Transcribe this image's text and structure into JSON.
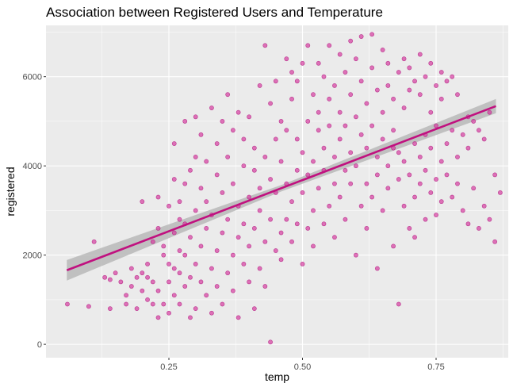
{
  "chart_data": {
    "type": "scatter",
    "title": "Association between Registered Users and Temperature",
    "xlabel": "temp",
    "ylabel": "registered",
    "xlim": [
      0.02,
      0.885
    ],
    "ylim": [
      -300,
      7150
    ],
    "x_ticks": [
      {
        "value": 0.25,
        "label": "0.25"
      },
      {
        "value": 0.5,
        "label": "0.50"
      },
      {
        "value": 0.75,
        "label": "0.75"
      }
    ],
    "y_ticks": [
      {
        "value": 0,
        "label": "0"
      },
      {
        "value": 2000,
        "label": "2000"
      },
      {
        "value": 4000,
        "label": "4000"
      },
      {
        "value": 6000,
        "label": "6000"
      }
    ],
    "grid": true,
    "point_color": "#d63c9f",
    "point_border": "#b01a80",
    "trend_color": "#c0117f",
    "band_color": "#b9b9b9",
    "panel_background": "#ebebeb",
    "trend_line": {
      "x": [
        0.059,
        0.862
      ],
      "y": [
        1660,
        5340
      ],
      "band_halfwidth": [
        230,
        160
      ]
    },
    "points": [
      [
        0.06,
        900
      ],
      [
        0.1,
        850
      ],
      [
        0.11,
        2300
      ],
      [
        0.13,
        1500
      ],
      [
        0.14,
        1450
      ],
      [
        0.14,
        800
      ],
      [
        0.15,
        1600
      ],
      [
        0.16,
        1400
      ],
      [
        0.17,
        1100
      ],
      [
        0.17,
        900
      ],
      [
        0.18,
        1300
      ],
      [
        0.18,
        1700
      ],
      [
        0.19,
        1500
      ],
      [
        0.19,
        800
      ],
      [
        0.2,
        1600
      ],
      [
        0.2,
        1200
      ],
      [
        0.2,
        3200
      ],
      [
        0.21,
        1500
      ],
      [
        0.21,
        1800
      ],
      [
        0.21,
        1000
      ],
      [
        0.22,
        900
      ],
      [
        0.22,
        2300
      ],
      [
        0.22,
        1400
      ],
      [
        0.23,
        600
      ],
      [
        0.23,
        2600
      ],
      [
        0.23,
        1200
      ],
      [
        0.23,
        3300
      ],
      [
        0.24,
        2200
      ],
      [
        0.24,
        2000
      ],
      [
        0.24,
        900
      ],
      [
        0.25,
        1400
      ],
      [
        0.25,
        1800
      ],
      [
        0.25,
        3100
      ],
      [
        0.25,
        700
      ],
      [
        0.26,
        2500
      ],
      [
        0.26,
        1700
      ],
      [
        0.26,
        3700
      ],
      [
        0.26,
        4500
      ],
      [
        0.26,
        1100
      ],
      [
        0.27,
        2100
      ],
      [
        0.27,
        2800
      ],
      [
        0.27,
        1600
      ],
      [
        0.27,
        3200
      ],
      [
        0.27,
        900
      ],
      [
        0.28,
        2000
      ],
      [
        0.28,
        3600
      ],
      [
        0.28,
        1300
      ],
      [
        0.28,
        5000
      ],
      [
        0.28,
        2700
      ],
      [
        0.29,
        1500
      ],
      [
        0.29,
        3900
      ],
      [
        0.29,
        600
      ],
      [
        0.29,
        2400
      ],
      [
        0.3,
        1800
      ],
      [
        0.3,
        4200
      ],
      [
        0.3,
        3000
      ],
      [
        0.3,
        5100
      ],
      [
        0.3,
        800
      ],
      [
        0.31,
        2200
      ],
      [
        0.31,
        1400
      ],
      [
        0.31,
        3500
      ],
      [
        0.31,
        4700
      ],
      [
        0.32,
        1100
      ],
      [
        0.32,
        2600
      ],
      [
        0.32,
        4100
      ],
      [
        0.32,
        3200
      ],
      [
        0.33,
        1700
      ],
      [
        0.33,
        5300
      ],
      [
        0.33,
        2900
      ],
      [
        0.33,
        700
      ],
      [
        0.34,
        2100
      ],
      [
        0.34,
        3800
      ],
      [
        0.34,
        4500
      ],
      [
        0.34,
        1300
      ],
      [
        0.35,
        2500
      ],
      [
        0.35,
        5000
      ],
      [
        0.35,
        3400
      ],
      [
        0.35,
        900
      ],
      [
        0.36,
        1600
      ],
      [
        0.36,
        4200
      ],
      [
        0.36,
        2800
      ],
      [
        0.36,
        5600
      ],
      [
        0.37,
        2000
      ],
      [
        0.37,
        3600
      ],
      [
        0.37,
        4800
      ],
      [
        0.37,
        1200
      ],
      [
        0.38,
        2400
      ],
      [
        0.38,
        3100
      ],
      [
        0.38,
        5200
      ],
      [
        0.38,
        600
      ],
      [
        0.39,
        1800
      ],
      [
        0.39,
        4000
      ],
      [
        0.39,
        2700
      ],
      [
        0.39,
        4600
      ],
      [
        0.4,
        1400
      ],
      [
        0.4,
        3300
      ],
      [
        0.4,
        5100
      ],
      [
        0.4,
        2200
      ],
      [
        0.41,
        800
      ],
      [
        0.41,
        3900
      ],
      [
        0.41,
        2600
      ],
      [
        0.41,
        4400
      ],
      [
        0.42,
        1700
      ],
      [
        0.42,
        3500
      ],
      [
        0.42,
        5800
      ],
      [
        0.42,
        3000
      ],
      [
        0.43,
        2300
      ],
      [
        0.43,
        4200
      ],
      [
        0.43,
        6700
      ],
      [
        0.43,
        1300
      ],
      [
        0.44,
        3700
      ],
      [
        0.44,
        5400
      ],
      [
        0.44,
        2800
      ],
      [
        0.44,
        50
      ],
      [
        0.45,
        2100
      ],
      [
        0.45,
        4600
      ],
      [
        0.45,
        3400
      ],
      [
        0.45,
        5900
      ],
      [
        0.46,
        2500
      ],
      [
        0.46,
        4100
      ],
      [
        0.46,
        5000
      ],
      [
        0.46,
        1900
      ],
      [
        0.47,
        3600
      ],
      [
        0.47,
        6400
      ],
      [
        0.47,
        2800
      ],
      [
        0.47,
        4800
      ],
      [
        0.48,
        3200
      ],
      [
        0.48,
        5500
      ],
      [
        0.48,
        2300
      ],
      [
        0.48,
        6100
      ],
      [
        0.49,
        3900
      ],
      [
        0.49,
        4600
      ],
      [
        0.49,
        2700
      ],
      [
        0.49,
        5900
      ],
      [
        0.5,
        3400
      ],
      [
        0.5,
        6300
      ],
      [
        0.5,
        4300
      ],
      [
        0.5,
        1800
      ],
      [
        0.51,
        2600
      ],
      [
        0.51,
        5000
      ],
      [
        0.51,
        3800
      ],
      [
        0.51,
        6700
      ],
      [
        0.52,
        4100
      ],
      [
        0.52,
        5600
      ],
      [
        0.52,
        3000
      ],
      [
        0.52,
        2200
      ],
      [
        0.53,
        4800
      ],
      [
        0.53,
        6300
      ],
      [
        0.53,
        3500
      ],
      [
        0.53,
        5200
      ],
      [
        0.54,
        2700
      ],
      [
        0.54,
        4400
      ],
      [
        0.54,
        6000
      ],
      [
        0.54,
        3900
      ],
      [
        0.55,
        5500
      ],
      [
        0.55,
        4900
      ],
      [
        0.55,
        3100
      ],
      [
        0.55,
        6700
      ],
      [
        0.56,
        4200
      ],
      [
        0.56,
        2400
      ],
      [
        0.56,
        5800
      ],
      [
        0.56,
        3600
      ],
      [
        0.57,
        5200
      ],
      [
        0.57,
        4600
      ],
      [
        0.57,
        6500
      ],
      [
        0.57,
        3300
      ],
      [
        0.58,
        3900
      ],
      [
        0.58,
        6100
      ],
      [
        0.58,
        2800
      ],
      [
        0.58,
        4900
      ],
      [
        0.59,
        5600
      ],
      [
        0.59,
        4300
      ],
      [
        0.59,
        6800
      ],
      [
        0.59,
        3600
      ],
      [
        0.6,
        2000
      ],
      [
        0.6,
        5100
      ],
      [
        0.6,
        6400
      ],
      [
        0.6,
        4000
      ],
      [
        0.61,
        4700
      ],
      [
        0.61,
        3100
      ],
      [
        0.61,
        5900
      ],
      [
        0.61,
        6900
      ],
      [
        0.62,
        4400
      ],
      [
        0.62,
        3600
      ],
      [
        0.62,
        5400
      ],
      [
        0.62,
        2600
      ],
      [
        0.63,
        6200
      ],
      [
        0.63,
        4900
      ],
      [
        0.63,
        3300
      ],
      [
        0.63,
        6950
      ],
      [
        0.64,
        4200
      ],
      [
        0.64,
        5700
      ],
      [
        0.64,
        1700
      ],
      [
        0.64,
        3800
      ],
      [
        0.65,
        5200
      ],
      [
        0.65,
        6600
      ],
      [
        0.65,
        4600
      ],
      [
        0.65,
        3000
      ],
      [
        0.66,
        4000
      ],
      [
        0.66,
        5800
      ],
      [
        0.66,
        6300
      ],
      [
        0.66,
        3500
      ],
      [
        0.67,
        4400
      ],
      [
        0.67,
        2200
      ],
      [
        0.67,
        5500
      ],
      [
        0.67,
        4800
      ],
      [
        0.68,
        3700
      ],
      [
        0.68,
        6100
      ],
      [
        0.68,
        900
      ],
      [
        0.68,
        4300
      ],
      [
        0.69,
        5300
      ],
      [
        0.69,
        3100
      ],
      [
        0.69,
        6400
      ],
      [
        0.69,
        4100
      ],
      [
        0.7,
        2600
      ],
      [
        0.7,
        5700
      ],
      [
        0.7,
        3800
      ],
      [
        0.7,
        6200
      ],
      [
        0.71,
        4500
      ],
      [
        0.71,
        3300
      ],
      [
        0.71,
        5900
      ],
      [
        0.71,
        2400
      ],
      [
        0.72,
        6500
      ],
      [
        0.72,
        4200
      ],
      [
        0.72,
        3600
      ],
      [
        0.72,
        5600
      ],
      [
        0.73,
        4700
      ],
      [
        0.73,
        2800
      ],
      [
        0.73,
        6000
      ],
      [
        0.73,
        3900
      ],
      [
        0.74,
        5200
      ],
      [
        0.74,
        3400
      ],
      [
        0.74,
        6300
      ],
      [
        0.74,
        4400
      ],
      [
        0.75,
        3700
      ],
      [
        0.75,
        5800
      ],
      [
        0.75,
        2900
      ],
      [
        0.75,
        4900
      ],
      [
        0.76,
        6100
      ],
      [
        0.76,
        4100
      ],
      [
        0.76,
        3200
      ],
      [
        0.76,
        5500
      ],
      [
        0.77,
        4500
      ],
      [
        0.77,
        3800
      ],
      [
        0.77,
        5900
      ],
      [
        0.78,
        3300
      ],
      [
        0.78,
        4800
      ],
      [
        0.78,
        6000
      ],
      [
        0.79,
        4200
      ],
      [
        0.79,
        3600
      ],
      [
        0.79,
        5600
      ],
      [
        0.8,
        3000
      ],
      [
        0.8,
        4700
      ],
      [
        0.81,
        4400
      ],
      [
        0.81,
        5100
      ],
      [
        0.81,
        2700
      ],
      [
        0.82,
        3500
      ],
      [
        0.82,
        5000
      ],
      [
        0.83,
        4800
      ],
      [
        0.83,
        2600
      ],
      [
        0.84,
        4600
      ],
      [
        0.84,
        3100
      ],
      [
        0.85,
        2800
      ],
      [
        0.85,
        5200
      ],
      [
        0.86,
        2300
      ],
      [
        0.86,
        3800
      ],
      [
        0.87,
        3400
      ]
    ]
  }
}
